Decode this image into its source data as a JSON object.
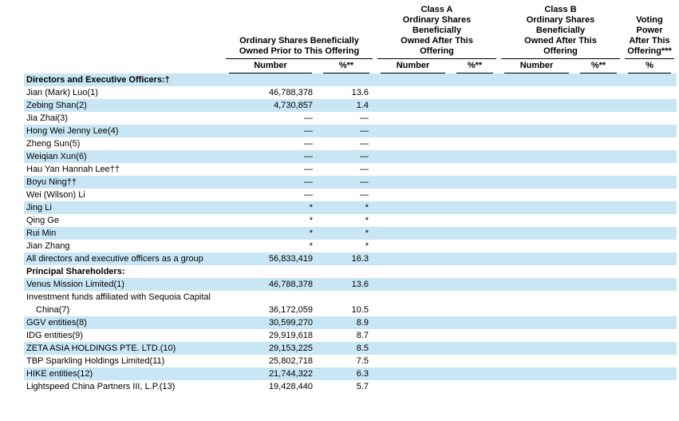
{
  "colors": {
    "row_highlight": "#c8e6f4",
    "rule": "#000000",
    "text": "#000000"
  },
  "table": {
    "groups": [
      {
        "label": "Ordinary Shares Beneficially\nOwned Prior to This Offering",
        "subcols": [
          "Number",
          "%**"
        ]
      },
      {
        "label": "Class A\nOrdinary Shares\nBeneficially\nOwned After This\nOffering",
        "subcols": [
          "Number",
          "%**"
        ]
      },
      {
        "label": "Class B\nOrdinary Shares\nBeneficially\nOwned After This\nOffering",
        "subcols": [
          "Number",
          "%**"
        ]
      },
      {
        "label": "Voting\nPower\nAfter This\nOffering***",
        "subcols": [
          "%"
        ]
      }
    ],
    "rows": [
      {
        "type": "section",
        "name": "Directors and Executive Officers:†",
        "shaded": true
      },
      {
        "type": "data",
        "name": "Jian (Mark) Luo(1)",
        "prior_number": "46,788,378",
        "prior_pct": "13.6",
        "a_number": "",
        "a_pct": "",
        "b_number": "",
        "b_pct": "",
        "voting": "",
        "shaded": false
      },
      {
        "type": "data",
        "name": "Zebing Shan(2)",
        "prior_number": "4,730,857",
        "prior_pct": "1.4",
        "a_number": "",
        "a_pct": "",
        "b_number": "",
        "b_pct": "",
        "voting": "",
        "shaded": true
      },
      {
        "type": "data",
        "name": "Jia Zhai(3)",
        "prior_number": "—",
        "prior_pct": "—",
        "a_number": "",
        "a_pct": "",
        "b_number": "",
        "b_pct": "",
        "voting": "",
        "shaded": false
      },
      {
        "type": "data",
        "name": "Hong Wei Jenny Lee(4)",
        "prior_number": "—",
        "prior_pct": "—",
        "a_number": "",
        "a_pct": "",
        "b_number": "",
        "b_pct": "",
        "voting": "",
        "shaded": true
      },
      {
        "type": "data",
        "name": "Zheng Sun(5)",
        "prior_number": "—",
        "prior_pct": "—",
        "a_number": "",
        "a_pct": "",
        "b_number": "",
        "b_pct": "",
        "voting": "",
        "shaded": false
      },
      {
        "type": "data",
        "name": "Weiqian Xun(6)",
        "prior_number": "—",
        "prior_pct": "—",
        "a_number": "",
        "a_pct": "",
        "b_number": "",
        "b_pct": "",
        "voting": "",
        "shaded": true
      },
      {
        "type": "data",
        "name": "Hau Yan Hannah Lee††",
        "prior_number": "—",
        "prior_pct": "—",
        "a_number": "",
        "a_pct": "",
        "b_number": "",
        "b_pct": "",
        "voting": "",
        "shaded": false
      },
      {
        "type": "data",
        "name": "Boyu Ning††",
        "prior_number": "—",
        "prior_pct": "—",
        "a_number": "",
        "a_pct": "",
        "b_number": "",
        "b_pct": "",
        "voting": "",
        "shaded": true
      },
      {
        "type": "data",
        "name": "Wei (Wilson) Li",
        "prior_number": "—",
        "prior_pct": "—",
        "a_number": "",
        "a_pct": "",
        "b_number": "",
        "b_pct": "",
        "voting": "",
        "shaded": false
      },
      {
        "type": "data",
        "name": "Jing Li",
        "prior_number": "*",
        "prior_pct": "*",
        "a_number": "",
        "a_pct": "",
        "b_number": "",
        "b_pct": "",
        "voting": "",
        "shaded": true
      },
      {
        "type": "data",
        "name": "Qing Ge",
        "prior_number": "*",
        "prior_pct": "*",
        "a_number": "",
        "a_pct": "",
        "b_number": "",
        "b_pct": "",
        "voting": "",
        "shaded": false
      },
      {
        "type": "data",
        "name": "Rui Min",
        "prior_number": "*",
        "prior_pct": "*",
        "a_number": "",
        "a_pct": "",
        "b_number": "",
        "b_pct": "",
        "voting": "",
        "shaded": true
      },
      {
        "type": "data",
        "name": "Jian Zhang",
        "prior_number": "*",
        "prior_pct": "*",
        "a_number": "",
        "a_pct": "",
        "b_number": "",
        "b_pct": "",
        "voting": "",
        "shaded": false
      },
      {
        "type": "data",
        "name": "All directors and executive officers as a group",
        "prior_number": "56,833,419",
        "prior_pct": "16.3",
        "a_number": "",
        "a_pct": "",
        "b_number": "",
        "b_pct": "",
        "voting": "",
        "shaded": true
      },
      {
        "type": "section",
        "name": "Principal Shareholders:",
        "shaded": false
      },
      {
        "type": "data",
        "name": "Venus Mission Limited(1)",
        "prior_number": "46,788,378",
        "prior_pct": "13.6",
        "a_number": "",
        "a_pct": "",
        "b_number": "",
        "b_pct": "",
        "voting": "",
        "shaded": true
      },
      {
        "type": "data",
        "name": "Investment funds affiliated with Sequoia Capital China(7)",
        "prior_number": "36,172,059",
        "prior_pct": "10.5",
        "a_number": "",
        "a_pct": "",
        "b_number": "",
        "b_pct": "",
        "voting": "",
        "shaded": false
      },
      {
        "type": "data",
        "name": "GGV entities(8)",
        "prior_number": "30,599,270",
        "prior_pct": "8.9",
        "a_number": "",
        "a_pct": "",
        "b_number": "",
        "b_pct": "",
        "voting": "",
        "shaded": true
      },
      {
        "type": "data",
        "name": "IDG entities(9)",
        "prior_number": "29,919,618",
        "prior_pct": "8.7",
        "a_number": "",
        "a_pct": "",
        "b_number": "",
        "b_pct": "",
        "voting": "",
        "shaded": false
      },
      {
        "type": "data",
        "name": "ZETA ASIA HOLDINGS PTE. LTD.(10)",
        "prior_number": "29,153,225",
        "prior_pct": "8.5",
        "a_number": "",
        "a_pct": "",
        "b_number": "",
        "b_pct": "",
        "voting": "",
        "shaded": true
      },
      {
        "type": "data",
        "name": "TBP Sparkling Holdings Limited(11)",
        "prior_number": "25,802,718",
        "prior_pct": "7.5",
        "a_number": "",
        "a_pct": "",
        "b_number": "",
        "b_pct": "",
        "voting": "",
        "shaded": false
      },
      {
        "type": "data",
        "name": "HIKE entities(12)",
        "prior_number": "21,744,322",
        "prior_pct": "6.3",
        "a_number": "",
        "a_pct": "",
        "b_number": "",
        "b_pct": "",
        "voting": "",
        "shaded": true
      },
      {
        "type": "data",
        "name": "Lightspeed China Partners III, L.P.(13)",
        "prior_number": "19,428,440",
        "prior_pct": "5.7",
        "a_number": "",
        "a_pct": "",
        "b_number": "",
        "b_pct": "",
        "voting": "",
        "shaded": false
      }
    ]
  }
}
